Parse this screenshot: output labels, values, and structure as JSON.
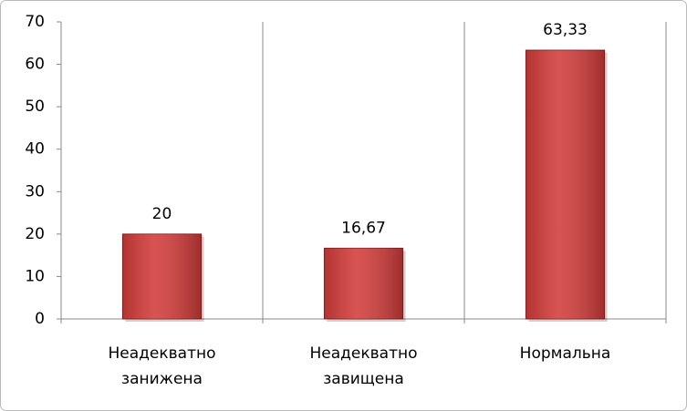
{
  "chart_data": {
    "type": "bar",
    "categories": [
      "Неадекватно занижена",
      "Неадекватно завищена",
      "Нормальна"
    ],
    "values": [
      20,
      16.67,
      63.33
    ],
    "value_labels": [
      "20",
      "16,67",
      "63,33"
    ],
    "color": "#d23c3a",
    "ylim": [
      0,
      70
    ],
    "yticks": [
      0,
      10,
      20,
      30,
      40,
      50,
      60,
      70
    ],
    "grid": "vertical"
  }
}
